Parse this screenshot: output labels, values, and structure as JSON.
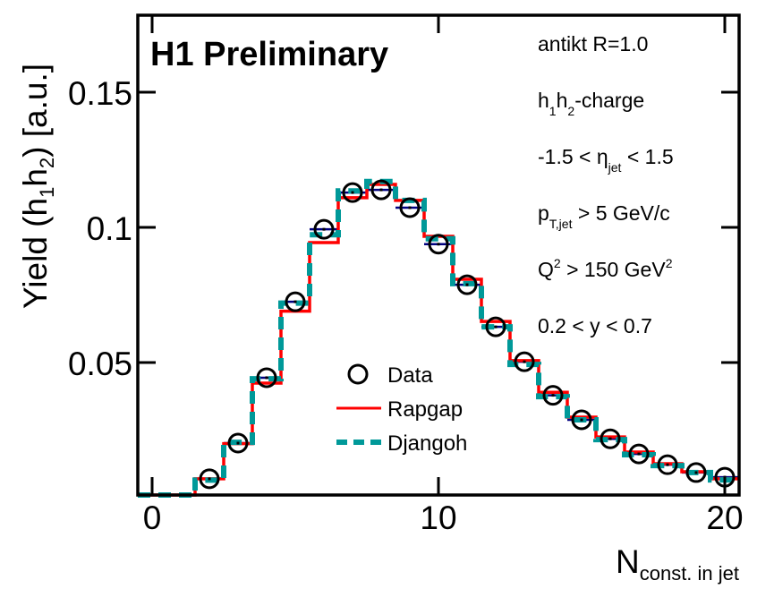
{
  "chart_data": {
    "type": "line",
    "title": "H1 Preliminary",
    "xlabel": "N",
    "xlabel_sub": "const. in jet",
    "ylabel": "Yield (h",
    "ylabel_sub1": "1",
    "ylabel_mid": "h",
    "ylabel_sub2": "2",
    "ylabel_end": ")  [a.u.]",
    "xlim": [
      -0.5,
      20.5
    ],
    "ylim": [
      0.001,
      0.1785
    ],
    "xticks": [
      0,
      10,
      20
    ],
    "xtick_labels": [
      "0",
      "10",
      "20"
    ],
    "yticks": [
      0.05,
      0.1,
      0.15
    ],
    "ytick_labels": [
      "0.05",
      "0.1",
      "0.15"
    ],
    "grid": false,
    "legend_position": "center",
    "bin_edges": [
      -0.5,
      0.5,
      1.5,
      2.5,
      3.5,
      4.5,
      5.5,
      6.5,
      7.5,
      8.5,
      9.5,
      10.5,
      11.5,
      12.5,
      13.5,
      14.5,
      15.5,
      16.5,
      17.5,
      18.5,
      19.5,
      20.5
    ],
    "series": [
      {
        "name": "Data",
        "style": "markers-open-circle",
        "color": "#000000",
        "x": [
          2,
          3,
          4,
          5,
          6,
          7,
          8,
          9,
          10,
          11,
          12,
          13,
          14,
          15,
          16,
          17,
          18,
          19,
          20
        ],
        "values": [
          0.007,
          0.0202,
          0.0444,
          0.0725,
          0.0993,
          0.1129,
          0.1139,
          0.1073,
          0.0938,
          0.0788,
          0.0632,
          0.0503,
          0.0379,
          0.0288,
          0.0218,
          0.0162,
          0.0122,
          0.0093,
          0.0076
        ]
      },
      {
        "name": "Rapgap",
        "style": "step-solid",
        "color": "#ff0000",
        "values": [
          0.0,
          0.0,
          0.007,
          0.02,
          0.0424,
          0.069,
          0.0944,
          0.111,
          0.1159,
          0.11,
          0.0967,
          0.0808,
          0.0652,
          0.0507,
          0.039,
          0.0298,
          0.0225,
          0.0169,
          0.0126,
          0.0096,
          0.007
        ]
      },
      {
        "name": "Djangoh",
        "style": "step-dashed",
        "color": "#009999",
        "values": [
          0.0,
          0.0,
          0.0065,
          0.0205,
          0.044,
          0.072,
          0.0973,
          0.1135,
          0.117,
          0.11,
          0.0958,
          0.0792,
          0.0632,
          0.0493,
          0.0374,
          0.0288,
          0.0215,
          0.0159,
          0.0119,
          0.0093,
          0.0066
        ]
      }
    ],
    "legend": [
      {
        "label": "Data",
        "symbol": "open-circle"
      },
      {
        "label": "Rapgap",
        "symbol": "solid-line"
      },
      {
        "label": "Djangoh",
        "symbol": "dashed-line"
      }
    ],
    "annotations": [
      {
        "id": "jet-algo",
        "parts": [
          {
            "t": "antikt R=1.0"
          }
        ]
      },
      {
        "id": "observable",
        "parts": [
          {
            "t": "h"
          },
          {
            "t": "1",
            "sub": true
          },
          {
            "t": "h"
          },
          {
            "t": "2",
            "sub": true
          },
          {
            "t": "-charge"
          }
        ]
      },
      {
        "id": "eta-cut",
        "parts": [
          {
            "t": "-1.5 < η"
          },
          {
            "t": "jet",
            "sub": true
          },
          {
            "t": "  < 1.5"
          }
        ]
      },
      {
        "id": "pt-cut",
        "parts": [
          {
            "t": "p"
          },
          {
            "t": "T,jet",
            "sub": true
          },
          {
            "t": " > 5 GeV/c"
          }
        ]
      },
      {
        "id": "q2-cut",
        "parts": [
          {
            "t": "Q"
          },
          {
            "t": "2",
            "sup": true
          },
          {
            "t": " >  150 GeV"
          },
          {
            "t": "2",
            "sup": true
          }
        ]
      },
      {
        "id": "y-cut",
        "parts": [
          {
            "t": "0.2 < y < 0.7"
          }
        ]
      }
    ],
    "colors": {
      "data": "#000000",
      "rapgap": "#ff0000",
      "djangoh": "#009999",
      "error_bar": "#000080",
      "axis": "#000000"
    }
  }
}
